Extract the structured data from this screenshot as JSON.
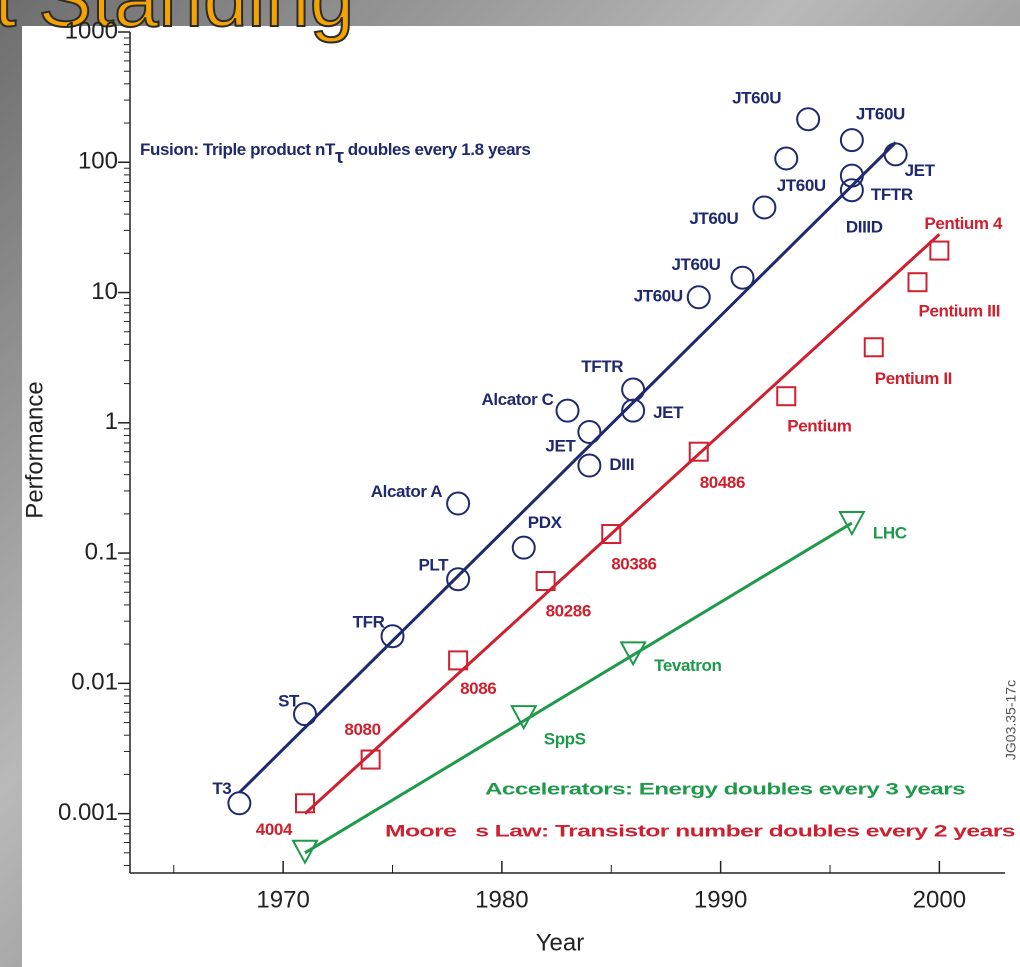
{
  "slide_title": "t Standing",
  "chart_data": {
    "type": "scatter",
    "x_label": "Year",
    "y_label": "Performance",
    "xlim": [
      1963,
      2003
    ],
    "xticks": [
      1970,
      1980,
      1990,
      2000
    ],
    "ylim": [
      0.00035,
      1000
    ],
    "yticks": [
      0.001,
      0.01,
      0.1,
      1,
      10,
      100,
      1000
    ],
    "log_y": true,
    "series": [
      {
        "color": "#1f2a6e",
        "marker": "circle",
        "x": [
          1968,
          1971,
          1975,
          1978,
          1978,
          1981,
          1983,
          1984,
          1984,
          1986,
          1986,
          1989,
          1991,
          1992,
          1993,
          1994,
          1996,
          1996,
          1996,
          1998
        ],
        "values": [
          0.0012,
          0.0058,
          0.023,
          0.063,
          0.24,
          0.11,
          1.24,
          0.85,
          0.47,
          1.8,
          1.24,
          9.2,
          13,
          45,
          107,
          214,
          148,
          79,
          61,
          115
        ],
        "labels": [
          "T3",
          "ST",
          "TFR",
          "PLT",
          "Alcator A",
          "PDX",
          "Alcator C",
          "JET",
          "DIII",
          "TFTR",
          "JET",
          "JT60U",
          "JT60U",
          "JT60U",
          "JT60U",
          "JT60U",
          "JT60U",
          "TFTR",
          "DIIID",
          "JET"
        ],
        "trend_x": [
          1968,
          1998
        ],
        "trend_values": [
          0.00145,
          142
        ]
      },
      {
        "color": "#cf2030",
        "marker": "square",
        "x": [
          1971,
          1974,
          1978,
          1982,
          1985,
          1989,
          1993,
          1997,
          1999,
          2000
        ],
        "values": [
          0.0012,
          0.0026,
          0.015,
          0.061,
          0.14,
          0.6,
          1.6,
          3.8,
          12,
          21
        ],
        "labels": [
          "4004",
          "8080",
          "8086",
          "80286",
          "80386",
          "80486",
          "Pentium",
          "Pentium II",
          "Pentium III",
          "Pentium 4"
        ],
        "trend_x": [
          1971,
          2000
        ],
        "trend_values": [
          0.001,
          28
        ]
      },
      {
        "color": "#1e9a4a",
        "marker": "triangle",
        "x": [
          1971,
          1981,
          1986,
          1996
        ],
        "values": [
          0.00051,
          0.0055,
          0.017,
          0.17
        ],
        "labels": [
          null,
          "SppS",
          "Tevatron",
          "LHC"
        ],
        "trend_x": [
          1971,
          1996
        ],
        "trend_values": [
          0.0005,
          0.17
        ]
      }
    ],
    "annotations": {
      "fusion": {
        "main": "Fusion: Triple product nT",
        "subscript": "τ",
        "rest": " doubles every 1.8 years"
      },
      "accelerators": "Accelerators: Energy doubles every 3 years",
      "moore": "Moore   s Law: Transistor number doubles every 2 years",
      "figure_id": "JG03.35-17c"
    }
  }
}
